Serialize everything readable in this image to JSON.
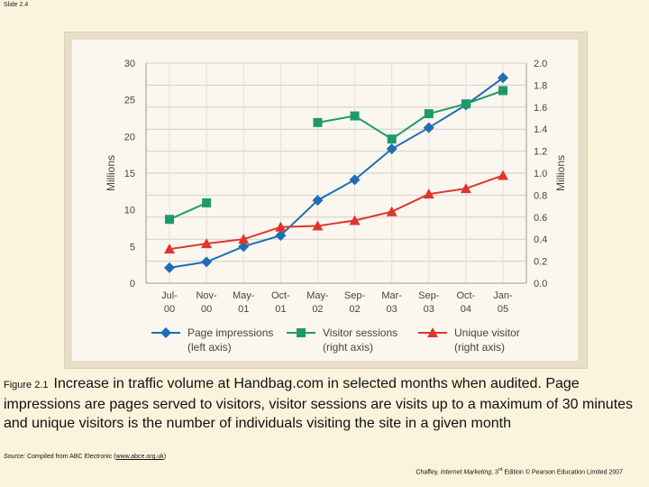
{
  "slide": {
    "label": "Slide 2.4"
  },
  "caption": {
    "figure_label": "Figure 2.1",
    "text": "Increase in traffic volume at Handbag.com in selected months when audited. Page impressions are pages served to visitors, visitor sessions are visits up to a maximum of 30 minutes and unique visitors is the number of individuals visiting the site in a given month"
  },
  "source": {
    "label": "Source:",
    "text": "Compiled from ABC Electronic (",
    "url": "www.abce.org.uk",
    "close": ")"
  },
  "credit": {
    "author": "Chaffey, ",
    "book": "Internet Marketing",
    "edition_num": ", 3",
    "edition_sup": "rd",
    "rest": " Edition © Pearson Education Limited 2007"
  },
  "colors": {
    "blue": "#1f6db5",
    "green": "#1e9a6a",
    "red": "#e0352c",
    "grid": "#cfcfcf",
    "axis_text": "#444444"
  },
  "chart_data": {
    "type": "line",
    "categories": [
      [
        "Jul-",
        "00"
      ],
      [
        "Nov-",
        "00"
      ],
      [
        "May-",
        "01"
      ],
      [
        "Oct-",
        "01"
      ],
      [
        "May-",
        "02"
      ],
      [
        "Sep-",
        "02"
      ],
      [
        "Mar-",
        "03"
      ],
      [
        "Sep-",
        "03"
      ],
      [
        "Oct-",
        "04"
      ],
      [
        "Jan-",
        "05"
      ]
    ],
    "left_axis": {
      "label": "Millions",
      "range": [
        0,
        30
      ],
      "ticks": [
        0,
        5,
        10,
        15,
        20,
        25,
        30
      ]
    },
    "right_axis": {
      "label": "Millions",
      "range": [
        0,
        2.0
      ],
      "ticks": [
        "0.0",
        "0.2",
        "0.4",
        "0.6",
        "0.8",
        "1.0",
        "1.2",
        "1.4",
        "1.6",
        "1.8",
        "2.0"
      ]
    },
    "series": [
      {
        "name": "Page impressions",
        "legend": [
          "Page impressions",
          "(left axis)"
        ],
        "axis": "left",
        "marker": "diamond",
        "color": "#1f6db5",
        "values": [
          2.1,
          2.9,
          5.0,
          6.5,
          11.3,
          14.1,
          18.3,
          21.2,
          24.3,
          28.0
        ]
      },
      {
        "name": "Visitor sessions",
        "legend": [
          "Visitor sessions",
          "(right axis)"
        ],
        "axis": "right",
        "marker": "square",
        "color": "#1e9a6a",
        "values": [
          0.58,
          0.73,
          null,
          null,
          1.46,
          1.52,
          1.31,
          1.54,
          1.63,
          1.75
        ]
      },
      {
        "name": "Unique visitor",
        "legend": [
          "Unique visitor",
          "(right axis)"
        ],
        "axis": "right",
        "marker": "triangle",
        "color": "#e0352c",
        "values": [
          0.31,
          0.36,
          0.4,
          0.51,
          0.52,
          0.57,
          0.65,
          0.81,
          0.86,
          0.98
        ]
      }
    ]
  }
}
